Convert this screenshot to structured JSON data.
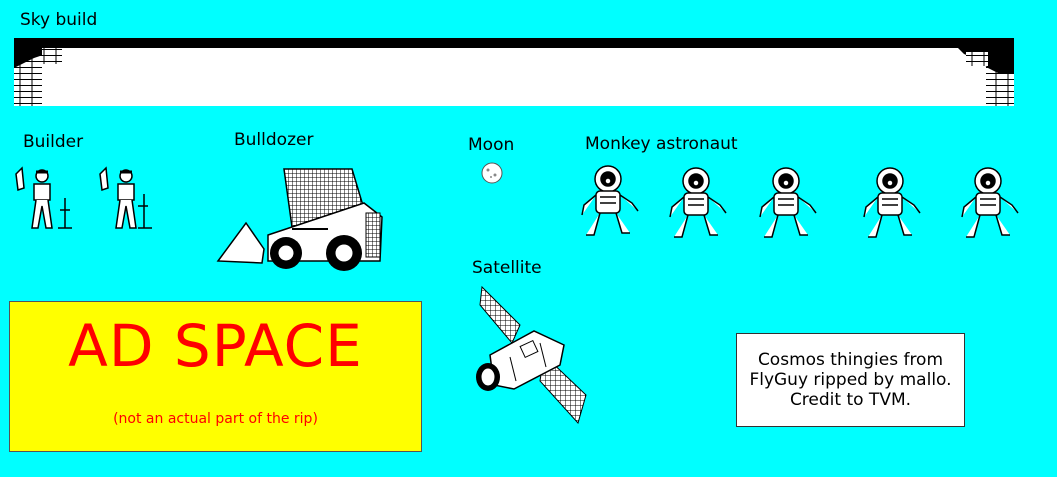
{
  "sections": {
    "sky_build": "Sky build",
    "builder": "Builder",
    "bulldozer": "Bulldozer",
    "moon": "Moon",
    "monkey_astronaut": "Monkey astronaut",
    "satellite": "Satellite"
  },
  "ad": {
    "title": "AD SPACE",
    "note": "(not an actual part of the rip)"
  },
  "credit": {
    "line1": "Cosmos thingies from",
    "line2": "FlyGuy ripped by mallo.",
    "line3": "Credit to TVM."
  },
  "colors": {
    "background": "#00FFFF",
    "ad_background": "#FFFF00",
    "ad_text": "#FF0000"
  }
}
